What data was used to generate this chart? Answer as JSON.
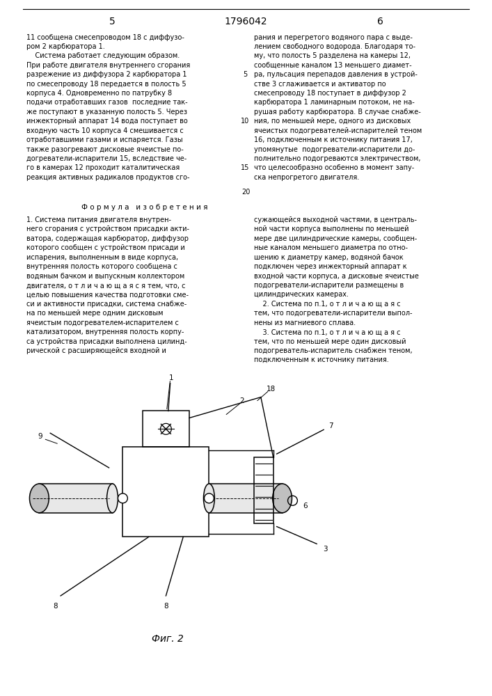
{
  "background_color": "#ffffff",
  "page_number_left": "5",
  "page_number_right": "6",
  "patent_number": "1796042",
  "formula_title": "Ф о р м у л а   и з о б р е т е н и я",
  "fig_caption": "Фиг. 2",
  "left_col_lines": [
    "11 сообщена смесепроводом 18 с диффузо-",
    "ром 2 карбюратора 1.",
    "    Система работает следующим образом.",
    "При работе двигателя внутреннего сгорания",
    "разрежение из диффузора 2 карбюратора 1",
    "по смесепроводу 18 передается в полость 5",
    "корпуса 4. Одновременно по патрубку 8",
    "подачи отработавших газов  последние так-",
    "же поступают в указанную полость 5. Через",
    "инжекторный аппарат 14 вода поступает во",
    "входную часть 10 корпуса 4 смешивается с",
    "отработавшими газами и испаряется. Газы",
    "также разогревают дисковые ячеистые по-",
    "догреватели-испарители 15, вследствие че-",
    "го в камерах 12 проходит каталитическая",
    "реакция активных радикалов продуктов сго-"
  ],
  "right_col_lines": [
    "рания и перегретого водяного пара с выде-",
    "лением свободного водорода. Благодаря то-",
    "му, что полость 5 разделена на камеры 12,",
    "сообщенные каналом 13 меньшего диамет-",
    "ра, пульсация перепадов давления в устрой-",
    "стве 3 сглаживается и активатор по",
    "смесепроводу 18 поступает в диффузор 2",
    "карбюратора 1 ламинарным потоком, не на-",
    "рушая работу карбюратора. В случае снабже-",
    "ния, по меньшей мере, одного из дисковых",
    "ячеистых подогревателей-испарителей теном",
    "16, подключенным к источнику питания 17,",
    "упомянутые  подогреватели-испарители до-",
    "полнительно подогреваются электричеством,",
    "что целесообразно особенно в момент запу-",
    "ска непрогретого двигателя."
  ],
  "line_nums_right": [
    "5",
    "10",
    "15"
  ],
  "line_num_20": "20",
  "formula_left_lines": [
    "1. Система питания двигателя внутрен-",
    "него сгорания с устройством присадки акти-",
    "ватора, содержащая карбюратор, диффузор",
    "которого сообщен с устройством присади и",
    "испарения, выполненным в виде корпуса,",
    "внутренняя полость которого сообщена с",
    "водяным бачком и выпускным коллектором",
    "двигателя, о т л и ч а ю щ а я с я тем, что, с",
    "целью повышения качества подготовки сме-",
    "си и активности присадки, система снабже-",
    "на по меньшей мере одним дисковым",
    "ячеистым подогревателем-испарителем с",
    "катализатором, внутренняя полость корпу-",
    "са устройства присадки выполнена цилинд-",
    "рической с расширяющейся входной и"
  ],
  "formula_right_lines": [
    "сужающейся выходной частями, в централь-",
    "ной части корпуса выполнены по меньшей",
    "мере две цилиндрические камеры, сообщен-",
    "ные каналом меньшего диаметра по отно-",
    "шению к диаметру камер, водяной бачок",
    "подключен через инжекторный аппарат к",
    "входной части корпуса, а дисковые ячеистые",
    "подогреватели-испарители размещены в",
    "цилиндрических камерах.",
    "    2. Система по п.1, о т л и ч а ю щ а я с",
    "тем, что подогреватели-испарители выпол-",
    "нены из магниевого сплава.",
    "    3. Система по п.1, о т л и ч а ю щ а я с",
    "тем, что по меньшей мере один дисковый",
    "подогреватель-испаритель снабжен теном,",
    "подключенным к источнику питания."
  ]
}
